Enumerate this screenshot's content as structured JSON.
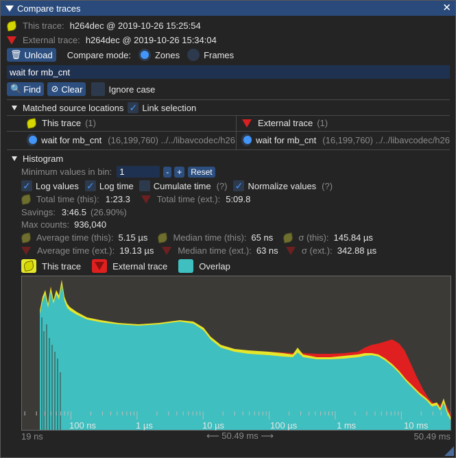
{
  "window": {
    "title": "Compare traces"
  },
  "header": {
    "this_label": "This trace:",
    "this_value": "h264dec @ 2019-10-26 15:25:54",
    "ext_label": "External trace:",
    "ext_value": "h264dec @ 2019-10-26 15:34:04"
  },
  "controls": {
    "unload": "Unload",
    "compare_mode": "Compare mode:",
    "zones": "Zones",
    "frames": "Frames",
    "search_value": "wait for mb_cnt",
    "find": "Find",
    "clear": "Clear",
    "ignore_case": "Ignore case"
  },
  "matched": {
    "title": "Matched source locations",
    "link": "Link selection",
    "this_header": "This trace",
    "this_count": "(1)",
    "ext_header": "External trace",
    "ext_count": "(1)",
    "this_item": "wait for mb_cnt",
    "this_loc": "(16,199,760) ../../libavcodec/h26",
    "ext_item": "wait for mb_cnt",
    "ext_loc": "(16,199,760) ../../libavcodec/h26"
  },
  "histogram": {
    "title": "Histogram",
    "min_bin_label": "Minimum values in bin:",
    "min_bin_value": "1",
    "minus": "-",
    "plus": "+",
    "reset": "Reset",
    "log_values": "Log values",
    "log_time": "Log time",
    "cumulate_time": "Cumulate time",
    "q1": "(?)",
    "normalize": "Normalize values",
    "q2": "(?)",
    "total_this_label": "Total time (this):",
    "total_this": "1:23.3",
    "total_ext_label": "Total time (ext.):",
    "total_ext": "5:09.8",
    "savings_label": "Savings:",
    "savings": "3:46.5",
    "savings_pct": "(26.90%)",
    "maxc_label": "Max counts:",
    "maxc": "936,040",
    "avg_this_label": "Average time (this):",
    "avg_this": "5.15 µs",
    "med_this_label": "Median time (this):",
    "med_this": "65 ns",
    "sig_this_label": "σ (this):",
    "sig_this": "145.84 µs",
    "avg_ext_label": "Average time (ext.):",
    "avg_ext": "19.13 µs",
    "med_ext_label": "Median time (ext.):",
    "med_ext": "63 ns",
    "sig_ext_label": "σ (ext.):",
    "sig_ext": "342.88 µs",
    "legend_this": "This trace",
    "legend_ext": "External trace",
    "legend_overlap": "Overlap",
    "x_min": "19 ns",
    "x_max": "50.49 ms",
    "x_range": "⟵ 50.49 ms ⟶",
    "tick_labels": [
      "100 ns",
      "1 µs",
      "10 µs",
      "100 µs",
      "1 ms",
      "10 ms"
    ]
  },
  "colors": {
    "this": "#e6e62a",
    "ext": "#e02020",
    "overlap": "#3fbfbf",
    "accent": "#4296fa",
    "titlebar": "#294a7a"
  },
  "chart_data": {
    "type": "area",
    "x_scale": "log",
    "x_range": [
      "19 ns",
      "50.49 ms"
    ],
    "x_ticks": [
      "100 ns",
      "1 µs",
      "10 µs",
      "100 µs",
      "1 ms",
      "10 ms"
    ],
    "series": [
      {
        "name": "This trace",
        "color": "#e6e62a"
      },
      {
        "name": "External trace",
        "color": "#e02020"
      },
      {
        "name": "Overlap",
        "color": "#3fbfbf"
      }
    ]
  }
}
